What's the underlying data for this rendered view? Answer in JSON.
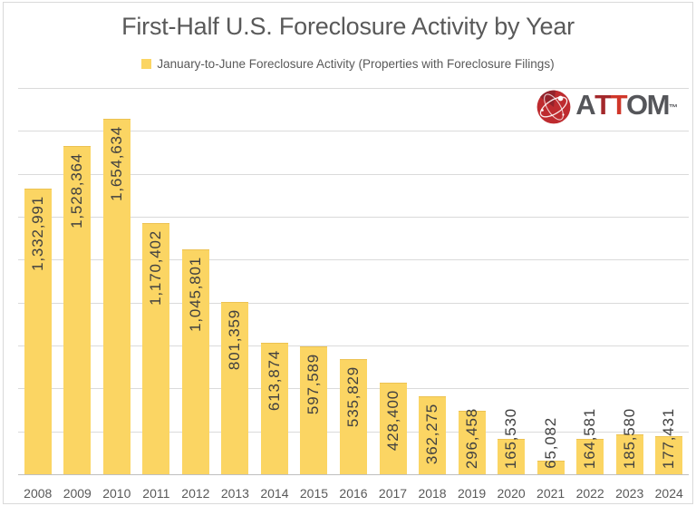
{
  "chart_data": {
    "type": "bar",
    "title": "First-Half U.S. Foreclosure Activity by Year",
    "legend": {
      "label": "January-to-June Foreclosure Activity (Properties with Foreclosure Filings)",
      "position": "top",
      "marker_color": "#FBD563"
    },
    "categories": [
      "2008",
      "2009",
      "2010",
      "2011",
      "2012",
      "2013",
      "2014",
      "2015",
      "2016",
      "2017",
      "2018",
      "2019",
      "2020",
      "2021",
      "2022",
      "2023",
      "2024"
    ],
    "values": [
      1332991,
      1528364,
      1654634,
      1170402,
      1045801,
      801359,
      613874,
      597589,
      535829,
      428400,
      362275,
      296458,
      165530,
      65082,
      164581,
      185580,
      177431
    ],
    "value_labels": [
      "1,332,991",
      "1,528,364",
      "1,654,634",
      "1,170,402",
      "1,045,801",
      "801,359",
      "613,874",
      "597,589",
      "535,829",
      "428,400",
      "362,275",
      "296,458",
      "165,530",
      "65,082",
      "164,581",
      "185,580",
      "177,431"
    ],
    "xlabel": "",
    "ylabel": "",
    "ylim": [
      0,
      1800000
    ],
    "grid_step": 200000,
    "grid": true,
    "colors": {
      "bar": "#FBD563",
      "bar_border": "#ECC252",
      "value_label": "#404040",
      "tick": "#595959",
      "grid": "#DADADA",
      "axis": "#BFBFBF",
      "title": "#595959"
    }
  },
  "logo": {
    "brand": "ATTOM",
    "trademark": "™",
    "icon_color": "#BE2B2F",
    "letters": [
      {
        "char": "A",
        "color": "#55565A"
      },
      {
        "char": "T",
        "color": "#A3282B"
      },
      {
        "char": "T",
        "color": "#D0372A"
      },
      {
        "char": "O",
        "color": "#55565A"
      },
      {
        "char": "M",
        "color": "#55565A"
      }
    ]
  }
}
